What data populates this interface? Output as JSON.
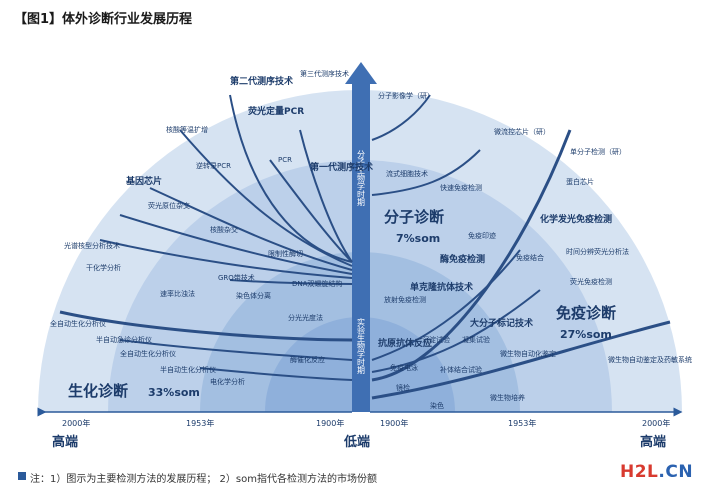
{
  "title": "【图1】体外诊断行业发展历程",
  "axis": {
    "left_year": "2000年",
    "left_mid_year": "1953年",
    "center_left_year": "1900年",
    "center_right_year": "1900年",
    "right_mid_year": "1953年",
    "right_year": "2000年",
    "left_end": "高端",
    "center": "低端",
    "right_end": "高端"
  },
  "sectors": [
    {
      "name": "生化诊断",
      "share": "33%som"
    },
    {
      "name": "分子诊断",
      "share": "7%som"
    },
    {
      "name": "免疫诊断",
      "share": "27%som"
    }
  ],
  "center_arrow": {
    "upper_text": "分子生物学时期",
    "lower_text": "实验生物学时期"
  },
  "labels": {
    "gen2_seq": "第二代测序技术",
    "gen3_seq": "第三代测序技术",
    "mol_imaging": "分子影像学（研）",
    "fluo_pcr": "荧光定量PCR",
    "nucleic_amp": "核酸等温扩增",
    "gen1_seq": "第一代测序技术",
    "pcr": "PCR",
    "rt_pcr": "逆转录PCR",
    "gene_chip": "基因芯片",
    "fluo_insitu": "荧光原位杂交",
    "nucleic_hyb": "核酸杂交",
    "restriction": "限制性酶切",
    "lightscatter": "光谱核型分析技术",
    "dry_chem": "干化学分析",
    "grq": "GRQ带技术",
    "dna_struct": "DNA双螺旋结构",
    "stain_sep": "染色体分离",
    "rate_method": "速率比浊法",
    "auto_bio": "全自动生化分析仪",
    "semi_auto": "半自动急诊分析仪",
    "auto_bio2": "全自动生化分析仪",
    "semi_bio": "半自动生化分析仪",
    "spectro": "分光光度法",
    "enzyme_rx": "酶催化反应",
    "electro": "电化学分析",
    "flow_chip": "流式细胞技术",
    "micro_chip": "微流控芯片（研）",
    "single_mol": "单分子检测（研）",
    "protein_chip": "蛋白芯片",
    "rapid_immuno": "快速免疫检测",
    "chemi_immuno": "化学发光免疫检测",
    "immuno_print": "免疫印迹",
    "time_fluo": "时间分辨荧光分析法",
    "enzyme_immuno": "酶免疫检测",
    "immuno_combo": "免疫结合",
    "mono_antibody": "单克隆抗体技术",
    "fluo_immuno": "荧光免疫检测",
    "radio_immuno": "放射免疫检测",
    "big_mol": "大分子标记技术",
    "antigen": "抗原抗体反应",
    "immuno_elec": "免疫电泳",
    "precip": "沉淀试验",
    "agglut": "凝集试验",
    "microbe_auto": "微生物自动化鉴定",
    "complement": "补体结合试验",
    "microbe_id": "微生物自动鉴定及药敏系统",
    "stain": "染色",
    "culture": "镜检",
    "microbe_cult": "微生物培养"
  },
  "note": "注：1）图示为主要检测方法的发展历程；    2）som指代各检测方法的市场份额",
  "logo": {
    "part1": "H2L",
    "part2": ".CN"
  }
}
